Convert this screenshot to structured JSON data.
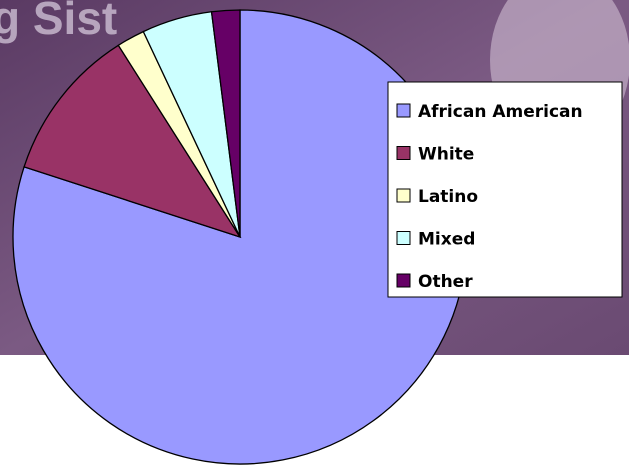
{
  "background_text": "g Sist",
  "chart_data": {
    "type": "pie",
    "categories": [
      "African American",
      "White",
      "Latino",
      "Mixed",
      "Other"
    ],
    "values": [
      80,
      11,
      2,
      5,
      2
    ],
    "colors": [
      "#9999ff",
      "#993366",
      "#ffffcc",
      "#ccffff",
      "#660066"
    ],
    "legend": "right"
  }
}
